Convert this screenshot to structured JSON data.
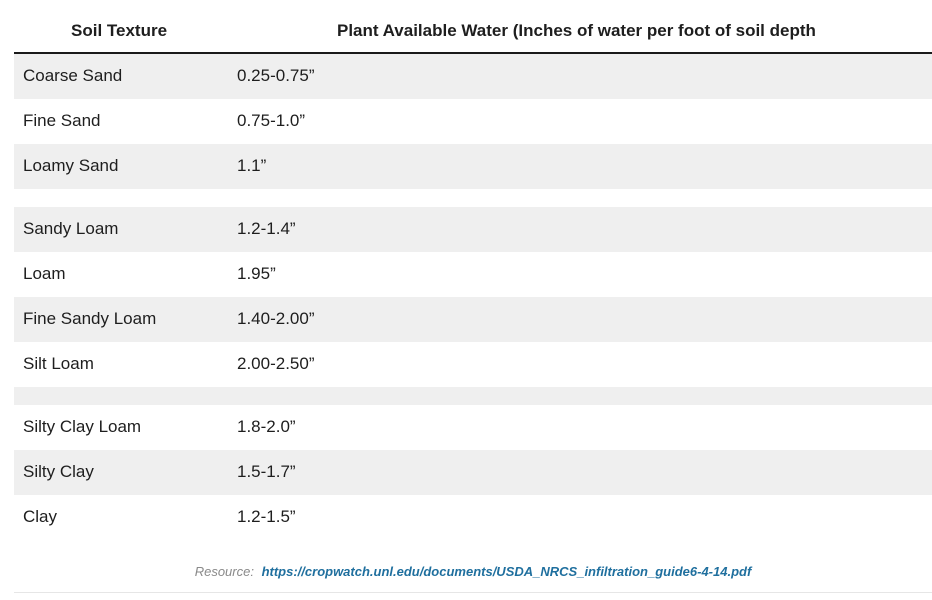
{
  "table": {
    "headers": {
      "col1": "Soil Texture",
      "col2": "Plant Available Water (Inches of water per foot of soil depth"
    },
    "groups": [
      {
        "rows": [
          {
            "texture": "Coarse Sand",
            "water": "0.25-0.75”"
          },
          {
            "texture": "Fine Sand",
            "water": "0.75-1.0”"
          },
          {
            "texture": "Loamy Sand",
            "water": "1.1”"
          }
        ]
      },
      {
        "rows": [
          {
            "texture": "Sandy Loam",
            "water": "1.2-1.4”"
          },
          {
            "texture": "Loam",
            "water": "1.95”"
          },
          {
            "texture": "Fine Sandy Loam",
            "water": "1.40-2.00”"
          },
          {
            "texture": "Silt Loam",
            "water": "2.00-2.50”"
          }
        ]
      },
      {
        "rows": [
          {
            "texture": "Silty Clay Loam",
            "water": "1.8-2.0”"
          },
          {
            "texture": "Silty Clay",
            "water": "1.5-1.7”"
          },
          {
            "texture": "Clay",
            "water": "1.2-1.5”"
          }
        ]
      }
    ]
  },
  "footer": {
    "label": "Resource:",
    "link": "https://cropwatch.unl.edu/documents/USDA_NRCS_infiltration_guide6-4-14.pdf"
  },
  "colors": {
    "row_shade": "#efefef",
    "link": "#1f6f9e"
  }
}
